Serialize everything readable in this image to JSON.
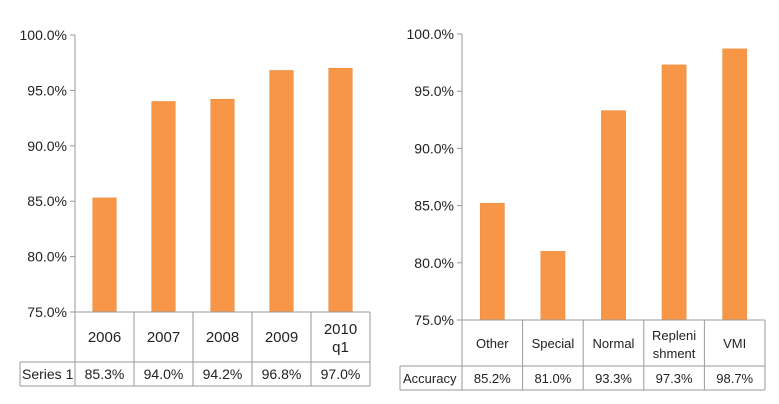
{
  "chart_data": [
    {
      "type": "bar",
      "categories": [
        "2006",
        "2007",
        "2008",
        "2009",
        "2010 q1"
      ],
      "series": [
        {
          "name": "Series 1",
          "values": [
            85.3,
            94.0,
            94.2,
            96.8,
            97.0
          ],
          "table_values": [
            "85.3%",
            "94.0%",
            "94.2%",
            "96.8%",
            "97.0%"
          ]
        }
      ],
      "ylim": [
        75,
        100
      ],
      "yticks": [
        "75.0%",
        "80.0%",
        "85.0%",
        "90.0%",
        "95.0%",
        "100.0%"
      ],
      "grid": false,
      "data_table": true,
      "bar_color": "#f79646"
    },
    {
      "type": "bar",
      "categories": [
        "Other",
        "Special",
        "Normal",
        "Repleni shment",
        "VMI"
      ],
      "series": [
        {
          "name": "Accuracy",
          "values": [
            85.2,
            81.0,
            93.3,
            97.3,
            98.7
          ],
          "table_values": [
            "85.2%",
            "81.0%",
            "93.3%",
            "97.3%",
            "98.7%"
          ]
        }
      ],
      "ylim": [
        75,
        100
      ],
      "yticks": [
        "75.0%",
        "80.0%",
        "85.0%",
        "90.0%",
        "95.0%",
        "100.0%"
      ],
      "grid": false,
      "data_table": true,
      "bar_color": "#f79646"
    }
  ]
}
